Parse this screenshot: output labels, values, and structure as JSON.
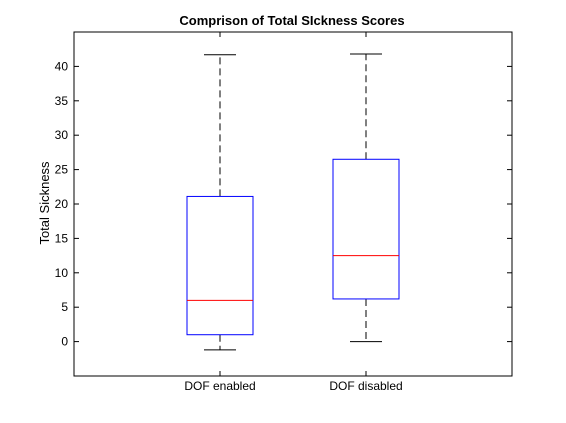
{
  "chart_data": {
    "type": "box",
    "title": "Comprison of Total SIckness Scores",
    "xlabel": "",
    "ylabel": "Total Sickness",
    "categories": [
      "DOF enabled",
      "DOF disabled"
    ],
    "boxes": [
      {
        "category": "DOF enabled",
        "whisker_low": -1.2,
        "q1": 1.0,
        "median": 6.0,
        "q3": 21.1,
        "whisker_high": 41.7
      },
      {
        "category": "DOF disabled",
        "whisker_low": 0.0,
        "q1": 6.2,
        "median": 12.5,
        "q3": 26.5,
        "whisker_high": 41.8
      }
    ],
    "ylim": [
      -5,
      45
    ],
    "yticks": [
      0,
      5,
      10,
      15,
      20,
      25,
      30,
      35,
      40
    ],
    "grid": false,
    "legend": "none",
    "colors": {
      "box": "#0000ff",
      "median": "#ff0000",
      "whisker": "#000000",
      "axes": "#000000"
    }
  }
}
